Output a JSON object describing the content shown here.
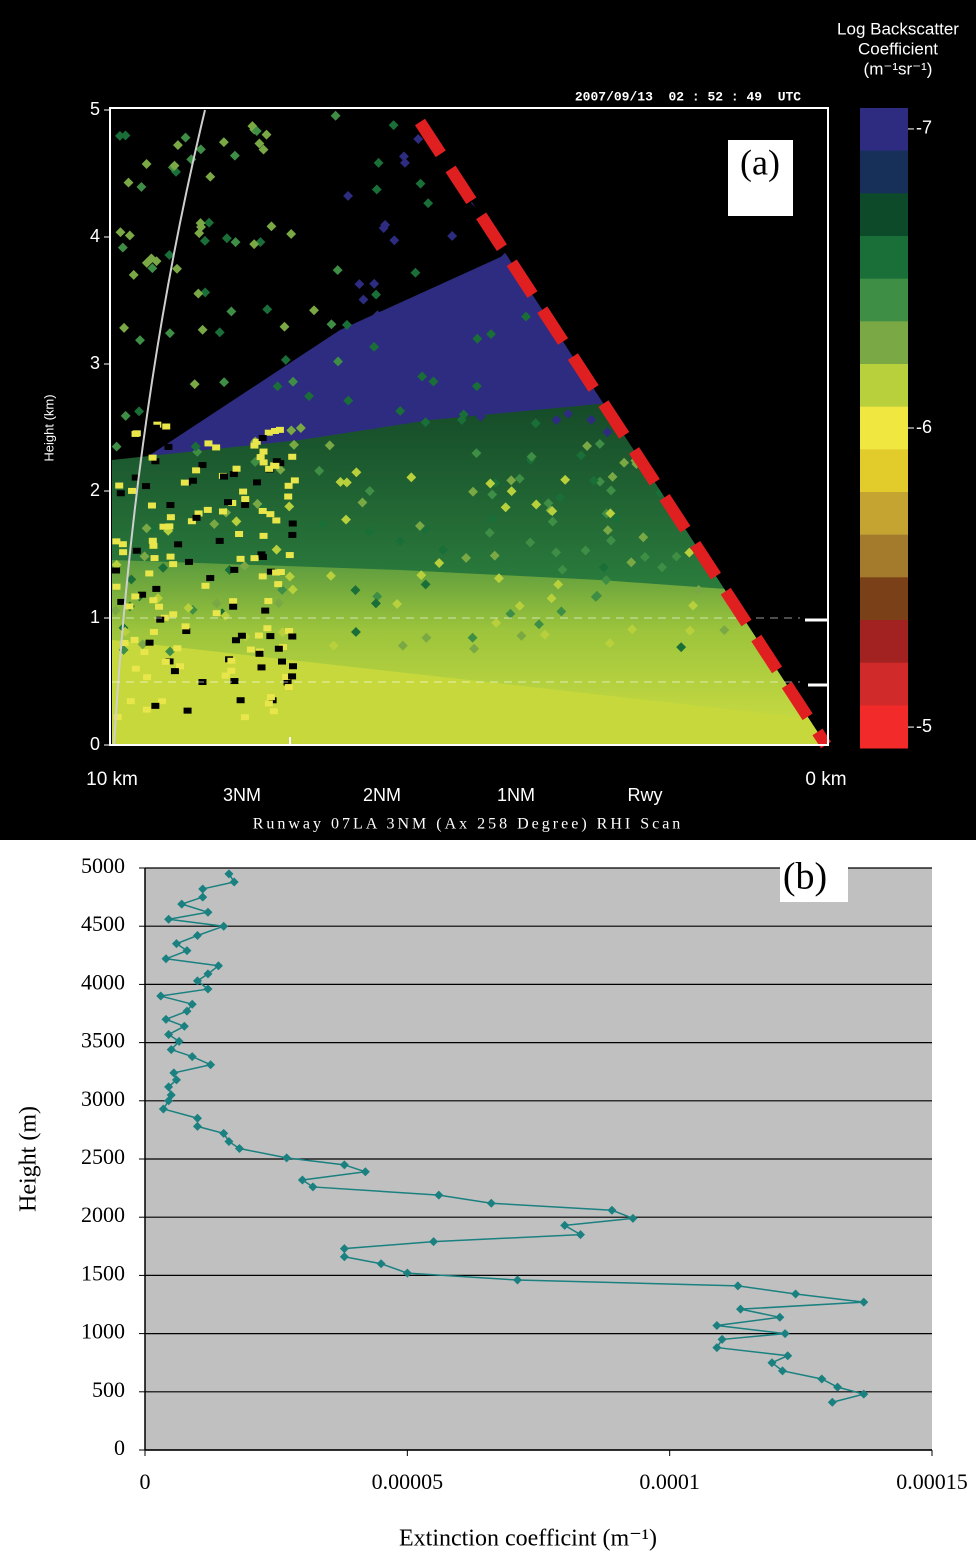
{
  "chart_data": [
    {
      "type": "rhi-scan",
      "title": "Runway 07LA 3NM (Ax 258 Degree) RHI Scan",
      "timestamp": "2007/09/13  02 : 52 : 49  UTC",
      "panel_label": "(a)",
      "y_label": "Height (km)",
      "ylim": [
        0,
        5
      ],
      "yticks": [
        0,
        1,
        2,
        3,
        4,
        5
      ],
      "xlim": [
        10,
        0
      ],
      "xticks": [
        {
          "value": 10,
          "label": "10 km"
        },
        {
          "value": 0,
          "label": "0 km"
        }
      ],
      "range_markers": [
        "3NM",
        "2NM",
        "1NM",
        "Rwy"
      ],
      "colorbar": {
        "title": [
          "Log Backscatter",
          "Coefficient",
          "(m⁻¹sr⁻¹)"
        ],
        "lim": [
          -7.07,
          -4.93
        ],
        "ticks": [
          -7,
          -6,
          -5
        ],
        "colors": [
          "#2d2c80",
          "#17305a",
          "#0d4a2a",
          "#1a6e38",
          "#3f8e46",
          "#7aa845",
          "#b8d03c",
          "#f0e840",
          "#e2cc2c",
          "#c6a432",
          "#a47a2c",
          "#7a4018",
          "#a22222",
          "#d02a2a",
          "#f22a2a"
        ]
      }
    },
    {
      "type": "line",
      "panel_label": "(b)",
      "x_label": "Extinction coefficint (m⁻¹)",
      "y_label": "Height (m)",
      "xlim": [
        0,
        0.00015
      ],
      "xticks": [
        0,
        5e-05,
        0.0001,
        0.00015
      ],
      "ylim": [
        0,
        5000
      ],
      "yticks": [
        0,
        500,
        1000,
        1500,
        2000,
        2500,
        3000,
        3500,
        4000,
        4500,
        5000
      ],
      "grid": true,
      "background": "#c0c0c0",
      "color": "#1a8080",
      "x": [
        1.6e-05,
        1.7e-05,
        1.1e-05,
        1.1e-05,
        7e-06,
        1.2e-05,
        4.5e-06,
        1.5e-05,
        1e-05,
        6e-06,
        8e-06,
        4e-06,
        1.4e-05,
        1.2e-05,
        1e-05,
        1.2e-05,
        3e-06,
        9e-06,
        8e-06,
        4e-06,
        7.5e-06,
        4.5e-06,
        6.5e-06,
        5e-06,
        9e-06,
        1.25e-05,
        5.5e-06,
        6e-06,
        4.5e-06,
        5e-06,
        4.5e-06,
        3.5e-06,
        1e-05,
        1e-05,
        1.5e-05,
        1.6e-05,
        1.8e-05,
        2.7e-05,
        3.8e-05,
        4.2e-05,
        3e-05,
        3.2e-05,
        5.6e-05,
        6.6e-05,
        8.9e-05,
        9.3e-05,
        8e-05,
        8.3e-05,
        5.5e-05,
        3.8e-05,
        3.8e-05,
        4.5e-05,
        5e-05,
        7.1e-05,
        0.000113,
        0.000124,
        0.000137,
        0.0001135,
        0.000121,
        0.000109,
        0.000122,
        0.00011,
        0.000109,
        0.0001225,
        0.0001195,
        0.0001215,
        0.000129,
        0.000132,
        0.000137,
        0.000131
      ],
      "y": [
        4950,
        4880,
        4820,
        4750,
        4690,
        4620,
        4560,
        4500,
        4420,
        4350,
        4290,
        4220,
        4160,
        4090,
        4030,
        3960,
        3900,
        3830,
        3770,
        3700,
        3640,
        3570,
        3510,
        3440,
        3380,
        3310,
        3240,
        3180,
        3120,
        3050,
        3000,
        2930,
        2850,
        2780,
        2720,
        2650,
        2590,
        2510,
        2450,
        2390,
        2320,
        2260,
        2190,
        2120,
        2060,
        1990,
        1930,
        1850,
        1790,
        1730,
        1660,
        1600,
        1520,
        1460,
        1410,
        1340,
        1270,
        1210,
        1140,
        1070,
        1000,
        950,
        880,
        810,
        750,
        680,
        610,
        540,
        480,
        410
      ]
    }
  ]
}
